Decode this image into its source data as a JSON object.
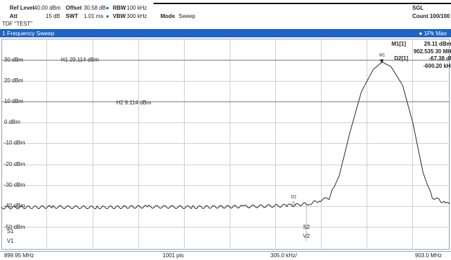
{
  "header": {
    "ref_level_label": "Ref Level",
    "ref_level_value": "40.00 dBm",
    "offset_label": "Offset",
    "offset_value": "30.58 dB",
    "rbw_label": "RBW",
    "rbw_value": "100 kHz",
    "att_label": "Att",
    "att_value": "15 dB",
    "swt_label": "SWT",
    "swt_value": "1.01 ms",
    "vbw_label": "VBW",
    "vbw_value": "300 kHz",
    "mode_label": "Mode",
    "mode_value": "Sweep",
    "tdf": "TDF \"TEST\"",
    "sgl": "SGL",
    "count": "Count 100/100"
  },
  "panel": {
    "title": "1 Frequency Sweep",
    "trace_badge": "● 1Pk Max"
  },
  "markers": {
    "m1_label": "M1[1]",
    "m1_level": "29.11 dBm",
    "m1_freq": "902.535 30 MHz",
    "d2_label": "D2[1]",
    "d2_level": "-67.38 dB",
    "d2_freq": "-600.20 kHz",
    "m1_tag": "M1",
    "d2_tag": "D2"
  },
  "annotations": {
    "h1": "H1 29.114 dBm",
    "h2": "H2 9.114 dBm",
    "s1": "S1",
    "s2": "S2",
    "v1": "V1",
    "v2": "V2"
  },
  "y_ticks": [
    "30 dBm",
    "20 dBm",
    "10 dBm",
    "0 dBm",
    "-10 dBm",
    "-20 dBm",
    "-30 dBm",
    "-40 dBm",
    "-50 dBm"
  ],
  "footer": {
    "start": "899.95 MHz",
    "points": "1001 pts",
    "span": "305.0 kHz/",
    "stop": "903.0 MHz"
  },
  "colors": {
    "title_bar": "#1f63c6",
    "trace": "#111111",
    "grid": "#cfcfcf"
  },
  "chart_data": {
    "type": "line",
    "x_unit": "MHz",
    "y_unit": "dBm",
    "x_start": 899.95,
    "x_stop": 903.0,
    "ylim": [
      -55,
      40
    ],
    "series": [
      {
        "x": [
          899.95,
          900.3,
          900.6,
          900.95,
          901.25,
          901.6,
          901.9,
          901.93,
          902.05,
          902.12,
          902.18,
          902.25,
          902.32,
          902.4,
          902.48,
          902.54,
          902.6,
          902.68,
          902.75,
          902.82,
          902.88,
          902.93,
          902.97,
          903.0
        ],
        "y": [
          -40.5,
          -40.2,
          -40.4,
          -40.1,
          -40.3,
          -40.0,
          -39.5,
          -39.4,
          -38.5,
          -37.0,
          -36.0,
          -25.0,
          -5.0,
          15.0,
          25.5,
          29.11,
          27.0,
          18.0,
          0.0,
          -24.0,
          -35.5,
          -37.0,
          -38.5,
          -38.8
        ]
      }
    ]
  }
}
